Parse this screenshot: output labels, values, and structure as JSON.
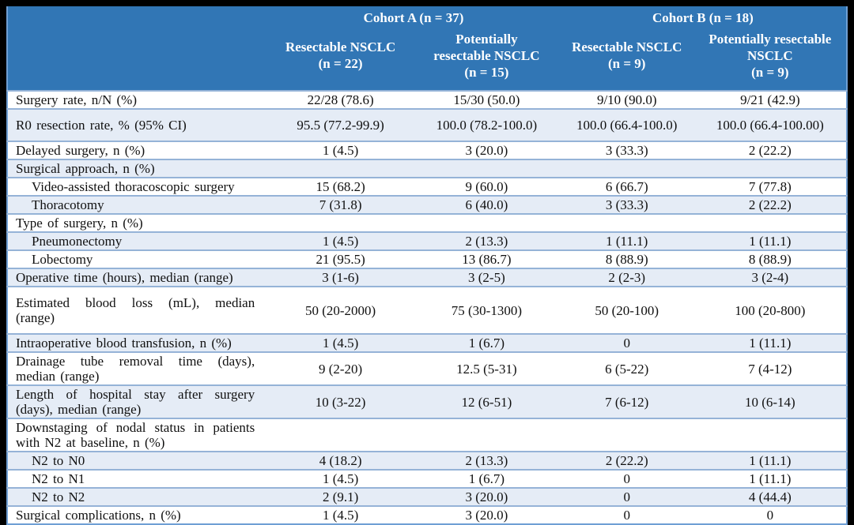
{
  "colors": {
    "frame_bg": "#000000",
    "header_bg": "#3176b5",
    "header_text": "#ffffff",
    "row_alt_bg": "#e5ecf6",
    "row_border": "#95b3d7",
    "outer_border": "#6f9fd4"
  },
  "header": {
    "groups": [
      {
        "label": "Cohort A (n = 37)",
        "span": 2
      },
      {
        "label": "Cohort B (n = 18)",
        "span": 2
      }
    ],
    "columns": [
      "Resectable NSCLC\n(n = 22)",
      "Potentially\nresectable NSCLC\n(n = 15)",
      "Resectable NSCLC\n(n = 9)",
      "Potentially resectable\nNSCLC\n(n = 9)"
    ]
  },
  "rows": [
    {
      "label": "Surgery rate, n/N (%)",
      "values": [
        "22/28 (78.6)",
        "15/30 (50.0)",
        "9/10 (90.0)",
        "9/21 (42.9)"
      ]
    },
    {
      "label": "R0 resection rate, % (95% CI)",
      "tall": true,
      "values": [
        "95.5 (77.2-99.9)",
        "100.0 (78.2-100.0)",
        "100.0 (66.4-100.0)",
        "100.0 (66.4-100.00)"
      ]
    },
    {
      "label": "Delayed surgery, n (%)",
      "values": [
        "1 (4.5)",
        "3 (20.0)",
        "3 (33.3)",
        "2 (22.2)"
      ]
    },
    {
      "label": "Surgical approach, n (%)",
      "section": true,
      "values": [
        "",
        "",
        "",
        ""
      ]
    },
    {
      "label": "Video-assisted thoracoscopic surgery",
      "indent": true,
      "values": [
        "15 (68.2)",
        "9 (60.0)",
        "6 (66.7)",
        "7 (77.8)"
      ]
    },
    {
      "label": "Thoracotomy",
      "indent": true,
      "values": [
        "7 (31.8)",
        "6 (40.0)",
        "3 (33.3)",
        "2 (22.2)"
      ]
    },
    {
      "label": "Type of surgery, n (%)",
      "section": true,
      "values": [
        "",
        "",
        "",
        ""
      ]
    },
    {
      "label": "Pneumonectomy",
      "indent": true,
      "values": [
        "1 (4.5)",
        "2 (13.3)",
        "1 (11.1)",
        "1 (11.1)"
      ]
    },
    {
      "label": "Lobectomy",
      "indent": true,
      "values": [
        "21 (95.5)",
        "13 (86.7)",
        "8 (88.9)",
        "8 (88.9)"
      ]
    },
    {
      "label": "Operative time (hours), median (range)",
      "values": [
        "3 (1-6)",
        "3 (2-5)",
        "2 (2-3)",
        "3 (2-4)"
      ]
    },
    {
      "label": "Estimated blood loss (mL), median (range)",
      "tall": true,
      "values": [
        "50 (20-2000)",
        "75 (30-1300)",
        "50 (20-100)",
        "100 (20-800)"
      ]
    },
    {
      "label": "Intraoperative blood transfusion, n (%)",
      "values": [
        "1 (4.5)",
        "1 (6.7)",
        "0",
        "1 (11.1)"
      ]
    },
    {
      "label": "Drainage tube removal time (days), median (range)",
      "values": [
        "9 (2-20)",
        "12.5 (5-31)",
        "6 (5-22)",
        "7 (4-12)"
      ]
    },
    {
      "label": "Length of hospital stay after surgery (days), median (range)",
      "values": [
        "10 (3-22)",
        "12 (6-51)",
        "7 (6-12)",
        "10 (6-14)"
      ]
    },
    {
      "label": "Downstaging of nodal status in patients with N2 at baseline, n (%)",
      "section": true,
      "values": [
        "",
        "",
        "",
        ""
      ]
    },
    {
      "label": "N2 to N0",
      "indent": true,
      "values": [
        "4 (18.2)",
        "2 (13.3)",
        "2 (22.2)",
        "1 (11.1)"
      ]
    },
    {
      "label": "N2 to N1",
      "indent": true,
      "values": [
        "1 (4.5)",
        "1 (6.7)",
        "0",
        "1 (11.1)"
      ]
    },
    {
      "label": "N2 to N2",
      "indent": true,
      "values": [
        "2 (9.1)",
        "3 (20.0)",
        "0",
        "4 (44.4)"
      ]
    },
    {
      "label": "Surgical complications, n (%)",
      "values": [
        "1 (4.5)",
        "3 (20.0)",
        "0",
        "0"
      ]
    }
  ]
}
